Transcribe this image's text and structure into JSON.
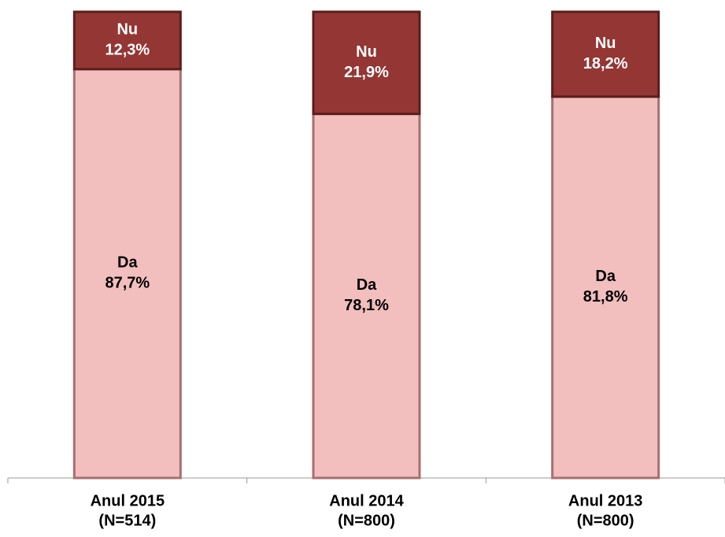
{
  "chart_data": {
    "type": "stacked_bar",
    "categories": [
      [
        "Anul 2015",
        "(N=514)"
      ],
      [
        "Anul 2014",
        "(N=800)"
      ],
      [
        "Anul 2013",
        "(N=800)"
      ]
    ],
    "series": [
      {
        "name": "Da",
        "color": "#f2bebe",
        "values": [
          87.7,
          78.1,
          81.8
        ],
        "value_labels": [
          "87,7%",
          "78,1%",
          "81,8%"
        ]
      },
      {
        "name": "Nu",
        "color": "#943634",
        "values": [
          12.3,
          21.9,
          18.2
        ],
        "value_labels": [
          "12,3%",
          "21,9%",
          "18,2%"
        ]
      }
    ],
    "ylim": [
      0,
      100
    ]
  }
}
